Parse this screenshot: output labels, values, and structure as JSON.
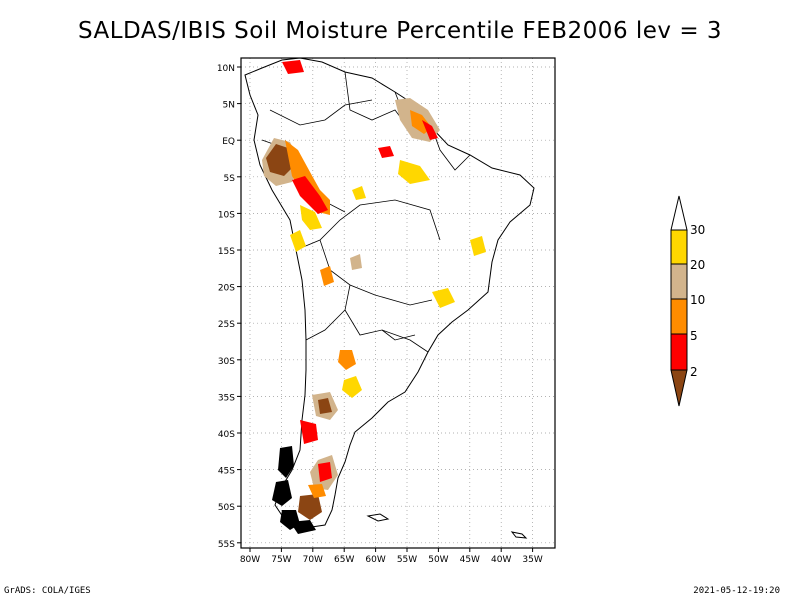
{
  "title": "SALDAS/IBIS Soil Moisture Percentile FEB2006 lev = 3",
  "map": {
    "lon_range": [
      -81,
      -32
    ],
    "lat_range": [
      -56,
      12
    ],
    "lat_ticks": [
      "10N",
      "5N",
      "EQ",
      "5S",
      "10S",
      "15S",
      "20S",
      "25S",
      "30S",
      "35S",
      "40S",
      "45S",
      "50S",
      "55S"
    ],
    "lon_ticks": [
      "80W",
      "75W",
      "70W",
      "65W",
      "60W",
      "55W",
      "50W",
      "45W",
      "40W",
      "35W"
    ],
    "grid": true
  },
  "legend": {
    "labels": [
      "2",
      "5",
      "10",
      "20",
      "30"
    ],
    "colors": {
      "below_2": "#8B4513",
      "2_5": "#FF0000",
      "5_10": "#FF8C00",
      "10_20": "#D2B48C",
      "20_30": "#FFD700",
      "above_30": "#FFFFFF"
    }
  },
  "footer": {
    "credit": "GrADS: COLA/IGES",
    "timestamp": "2021-05-12-19:20"
  }
}
